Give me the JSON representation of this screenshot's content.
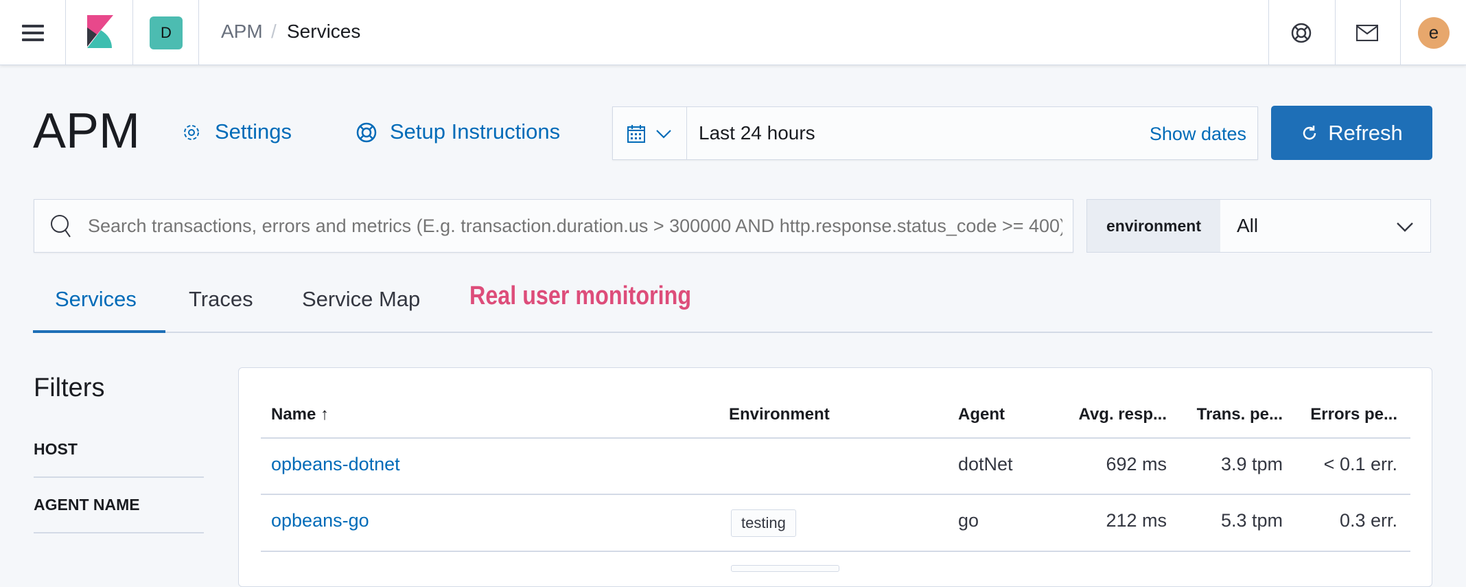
{
  "header": {
    "space_initial": "D",
    "breadcrumbs": [
      "APM",
      "Services"
    ],
    "avatar_initial": "e",
    "icons": [
      "menu-icon",
      "kibana-logo",
      "help-icon",
      "mail-icon"
    ]
  },
  "page": {
    "title": "APM",
    "settings_label": "Settings",
    "setup_label": "Setup Instructions"
  },
  "datepicker": {
    "value": "Last 24 hours",
    "show_dates": "Show dates",
    "refresh_label": "Refresh"
  },
  "search": {
    "placeholder": "Search transactions, errors and metrics (E.g. transaction.duration.us > 300000 AND http.response.status_code >= 400)"
  },
  "environment": {
    "label": "environment",
    "value": "All"
  },
  "tabs": [
    {
      "label": "Services",
      "active": true
    },
    {
      "label": "Traces"
    },
    {
      "label": "Service Map"
    },
    {
      "label": "Real user monitoring"
    }
  ],
  "filters": {
    "title": "Filters",
    "groups": [
      "HOST",
      "AGENT NAME"
    ]
  },
  "table": {
    "columns": [
      "Name",
      "Environment",
      "Agent",
      "Avg. resp...",
      "Trans. pe...",
      "Errors pe..."
    ],
    "rows": [
      {
        "name": "opbeans-dotnet",
        "environment": "",
        "agent": "dotNet",
        "avg": "692 ms",
        "trans": "3.9 tpm",
        "errors": "< 0.1 err."
      },
      {
        "name": "opbeans-go",
        "environment": "testing",
        "agent": "go",
        "avg": "212 ms",
        "trans": "5.3 tpm",
        "errors": "0.3 err."
      }
    ]
  },
  "colors": {
    "accent": "#006bb8",
    "button": "#1e6fb7",
    "rum": "#dd4d7a",
    "space": "#4cbcb1",
    "avatar": "#e7a76c"
  }
}
